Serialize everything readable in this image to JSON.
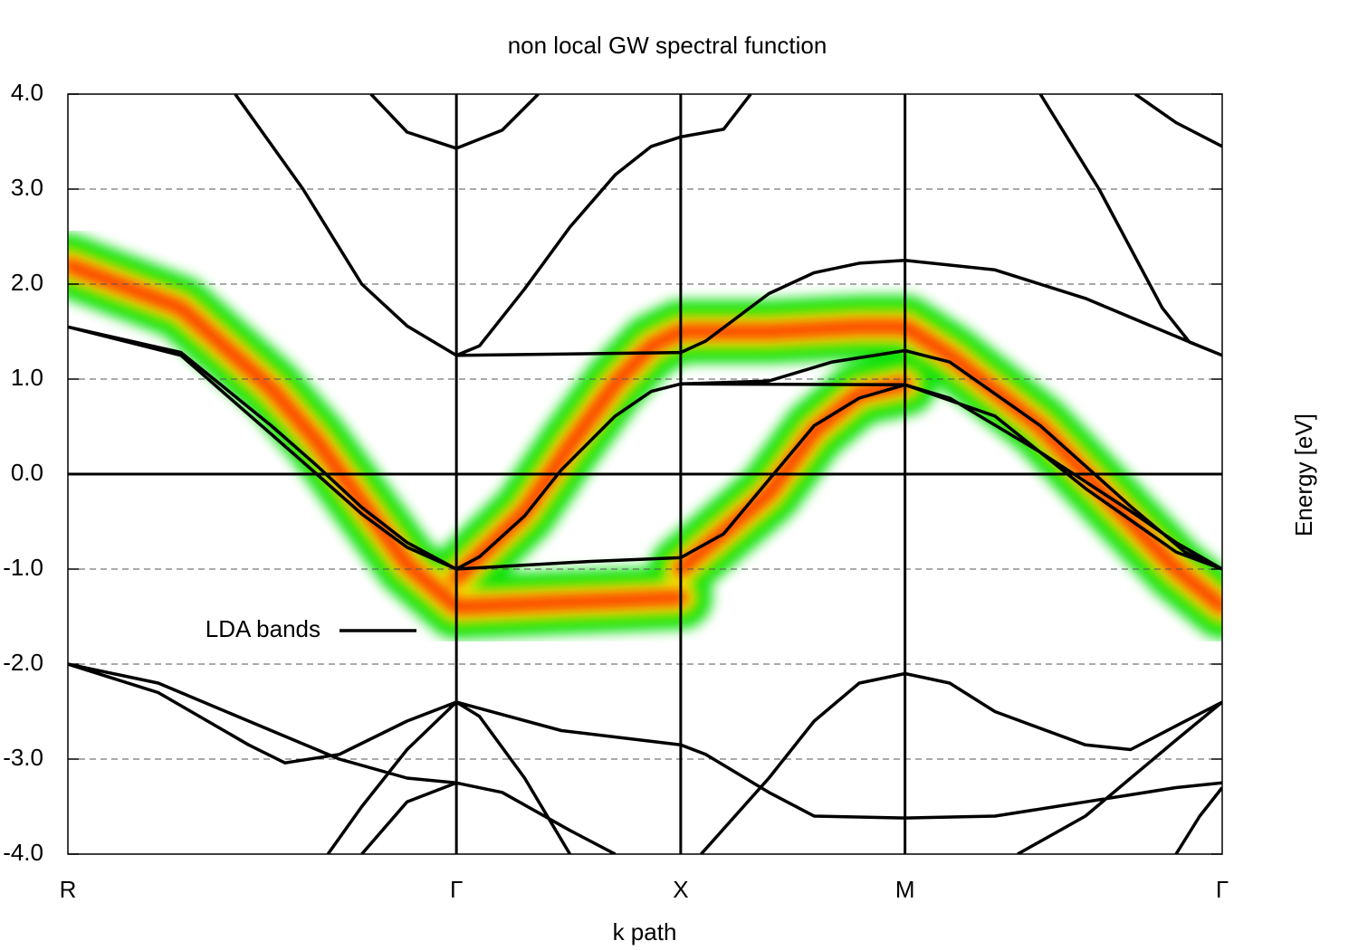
{
  "chart_data": {
    "type": "line",
    "title": "non local GW spectral function",
    "xlabel": "k path",
    "ylabel": "Energy [eV]",
    "xlim": [
      0,
      5.146
    ],
    "ylim": [
      -4,
      4
    ],
    "xticks": [
      {
        "value": 0,
        "label": "R"
      },
      {
        "value": 1.732,
        "label": "Γ"
      },
      {
        "value": 2.732,
        "label": "X"
      },
      {
        "value": 3.732,
        "label": "M"
      },
      {
        "value": 5.146,
        "label": "Γ"
      }
    ],
    "yticks": [
      {
        "value": -4,
        "label": "-4.0"
      },
      {
        "value": -3,
        "label": "-3.0"
      },
      {
        "value": -2,
        "label": "-2.0"
      },
      {
        "value": -1,
        "label": "-1.0"
      },
      {
        "value": 0,
        "label": "0.0"
      },
      {
        "value": 1,
        "label": "1.0"
      },
      {
        "value": 2,
        "label": "2.0"
      },
      {
        "value": 3,
        "label": "3.0"
      },
      {
        "value": 4,
        "label": "4.0"
      }
    ],
    "grid": true,
    "legend": "center left",
    "series": [
      {
        "name": "LDA bands",
        "color": "#000000",
        "x": [
          0,
          0.504,
          0.907,
          1.109,
          1.31,
          1.512,
          1.732,
          null,
          0,
          0.504,
          0.907,
          1.109,
          1.31,
          1.512,
          1.732,
          null,
          1.732,
          2.32,
          2.732,
          2.923,
          3.125,
          3.327,
          3.528,
          3.732,
          3.931,
          4.335,
          4.738,
          4.94,
          5.146,
          null,
          1.732,
          1.835,
          2.036,
          2.198,
          2.44,
          2.601,
          2.732,
          3.732,
          4.133,
          4.536,
          4.94,
          5.146,
          null,
          2.732,
          3.125,
          3.407,
          3.732,
          3.931,
          4.335,
          4.738,
          4.98,
          5.146,
          null,
          1.732,
          2.732,
          2.843,
          3.125,
          3.327,
          3.528,
          3.732,
          4.133,
          4.536,
          4.94,
          5.146,
          null,
          0.746,
          1.048,
          1.31,
          1.512,
          1.732,
          null,
          1.732,
          1.835,
          2.036,
          2.238,
          2.44,
          2.601,
          2.732,
          2.923,
          3.044,
          null,
          1.351,
          1.512,
          1.732,
          1.936,
          2.097,
          null,
          4.335,
          4.597,
          4.879,
          5.0,
          5.146,
          null,
          4.758,
          4.94,
          5.146,
          null,
          0,
          0.403,
          0.806,
          0.968,
          1.21,
          1.512,
          1.732,
          null,
          0,
          0.403,
          0.806,
          1.21,
          1.512,
          1.732,
          null,
          1.159,
          1.31,
          1.512,
          1.732,
          2.2,
          2.732,
          2.843,
          3.125,
          3.327,
          3.732,
          4.133,
          4.536,
          4.94,
          5.146,
          null,
          1.31,
          1.512,
          1.732,
          1.936,
          2.238,
          2.44,
          null,
          1.732,
          1.835,
          2.036,
          2.238,
          null,
          2.823,
          3.125,
          3.327,
          3.528,
          3.732,
          3.931,
          4.133,
          4.536,
          4.738,
          4.94,
          5.146,
          null,
          4.234,
          4.536,
          4.738,
          4.94,
          5.146,
          null,
          4.94,
          5.046,
          5.146
        ],
        "values": [
          1.55,
          1.25,
          0.42,
          0,
          -0.42,
          -0.77,
          -1,
          null,
          1.55,
          1.28,
          0.51,
          0.09,
          -0.35,
          -0.72,
          -1,
          null,
          -1,
          -0.92,
          -0.88,
          -0.63,
          -0.06,
          0.51,
          0.8,
          0.94,
          0.8,
          0.23,
          -0.39,
          -0.72,
          -1,
          null,
          -1,
          -0.87,
          -0.44,
          0.04,
          0.61,
          0.87,
          0.95,
          0.94,
          0.61,
          -0.15,
          -0.82,
          -1,
          null,
          0.95,
          0.98,
          1.18,
          1.3,
          1.18,
          0.51,
          -0.34,
          -0.82,
          -1,
          null,
          1.25,
          1.28,
          1.4,
          1.9,
          2.12,
          2.22,
          2.25,
          2.15,
          1.85,
          1.45,
          1.25,
          null,
          4,
          3,
          2,
          1.56,
          1.25,
          null,
          1.25,
          1.35,
          1.95,
          2.6,
          3.15,
          3.45,
          3.55,
          3.63,
          4,
          null,
          4,
          3.6,
          3.43,
          3.62,
          4,
          null,
          4,
          3,
          1.75,
          1.39,
          1.25,
          null,
          4,
          3.7,
          3.45,
          null,
          -2,
          -2.3,
          -2.85,
          -3.04,
          -2.95,
          -2.6,
          -2.4,
          null,
          -2,
          -2.2,
          -2.6,
          -3,
          -3.2,
          -3.25,
          null,
          -4,
          -3.5,
          -2.9,
          -2.4,
          -2.7,
          -2.85,
          -2.95,
          -3.35,
          -3.6,
          -3.62,
          -3.6,
          -3.45,
          -3.3,
          -3.25,
          null,
          -4,
          -3.45,
          -3.25,
          -3.35,
          -3.75,
          -4,
          null,
          -2.4,
          -2.55,
          -3.2,
          -4,
          null,
          -4,
          -3.2,
          -2.6,
          -2.2,
          -2.1,
          -2.2,
          -2.5,
          -2.85,
          -2.9,
          -2.65,
          -2.4,
          null,
          -4,
          -3.6,
          -3.2,
          -2.8,
          -2.4,
          null,
          -4,
          -3.6,
          -3.3
        ]
      },
      {
        "colors": [
          "#00e000",
          "#ffee00",
          "#ff2000"
        ],
        "x": [
          0,
          0.504,
          0.907,
          1.109,
          1.31,
          1.512,
          1.732,
          null,
          1.732,
          2.2,
          2.732,
          null,
          1.732,
          2.036,
          2.238,
          2.44,
          2.601,
          2.732,
          3.125,
          3.528,
          3.732,
          3.931,
          4.335,
          4.738,
          4.94,
          5.146,
          null,
          2.732,
          3.125,
          3.327,
          3.528,
          3.732
        ],
        "values": [
          2.2,
          1.75,
          0.9,
          0.35,
          -0.3,
          -0.95,
          -1.4,
          null,
          -1.4,
          -1.35,
          -1.3,
          null,
          -1.1,
          -0.4,
          0.3,
          0.95,
          1.35,
          1.5,
          1.5,
          1.55,
          1.55,
          1.25,
          0.5,
          -0.5,
          -1.0,
          -1.4,
          null,
          -1.0,
          -0.2,
          0.45,
          0.85,
          0.95
        ]
      }
    ]
  }
}
